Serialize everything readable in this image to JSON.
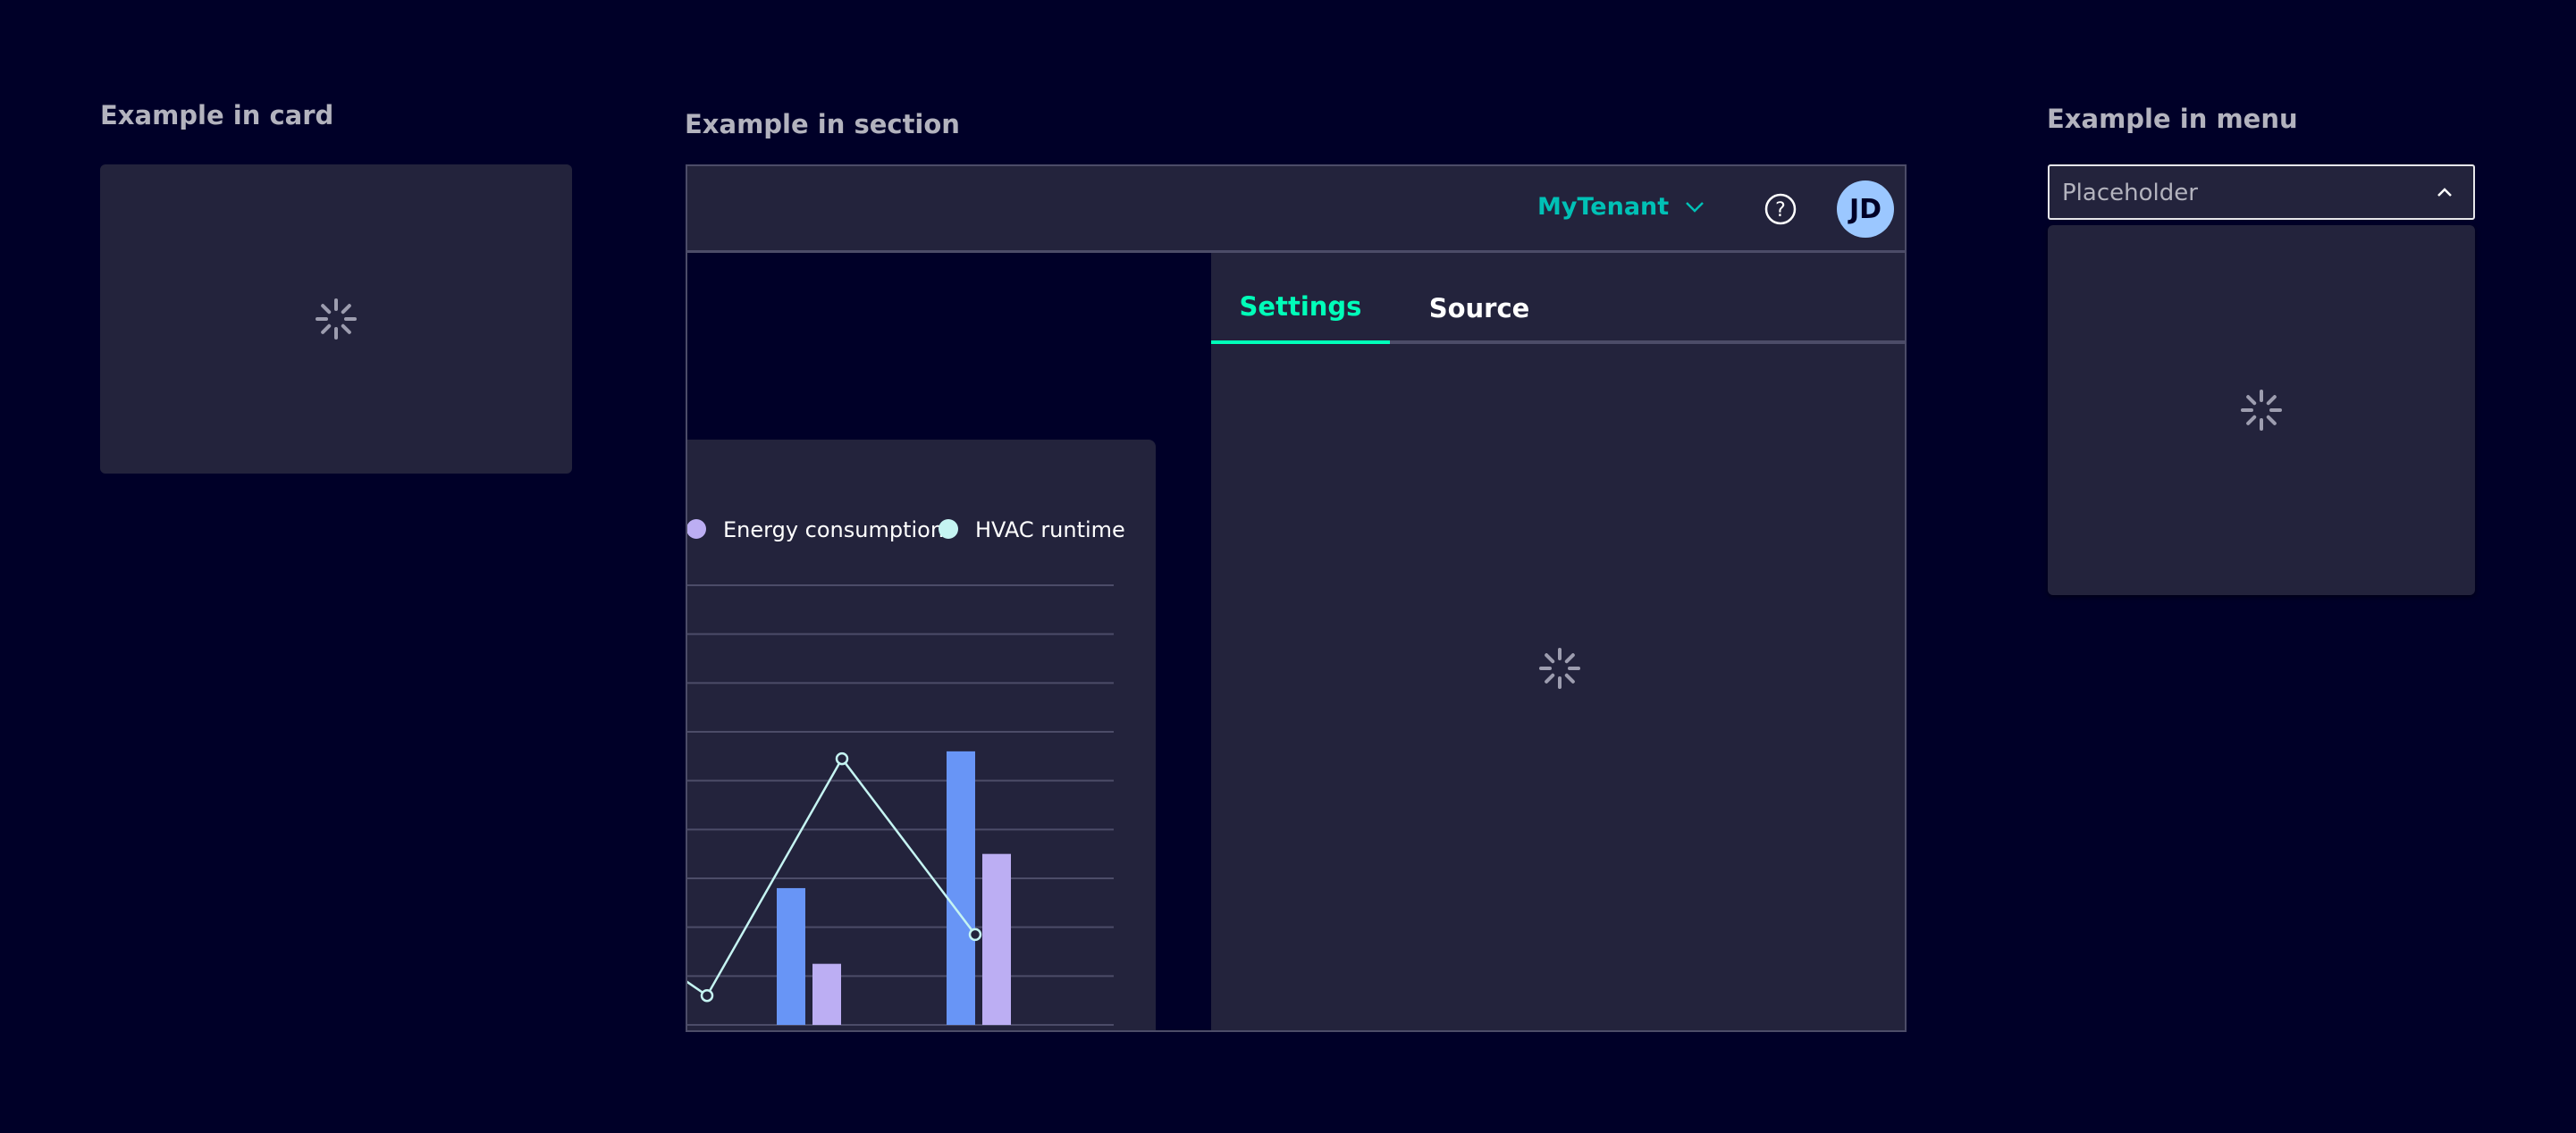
{
  "card_example": {
    "label": "Example in card"
  },
  "section_example": {
    "label": "Example in section",
    "header": {
      "tenant": "MyTenant",
      "avatar_initials": "JD"
    },
    "tabs": [
      {
        "label": "Settings",
        "active": true
      },
      {
        "label": "Source",
        "active": false
      }
    ],
    "chart_data": {
      "type": "bar",
      "legend": [
        "Energy consumption",
        "HVAC runtime"
      ],
      "legend_placement": "top",
      "grid": true,
      "ylim": [
        0,
        9
      ],
      "series": [
        {
          "values": [
            2.8,
            5.6
          ],
          "color": "#6895f6"
        },
        {
          "name": "Energy consumption",
          "values": [
            1.25,
            3.5
          ],
          "color": "#bcaef3"
        },
        {
          "name": "HVAC runtime",
          "type": "line",
          "values": [
            0.6,
            5.45,
            1.85
          ],
          "color": "#c5f4f2"
        }
      ]
    }
  },
  "menu_example": {
    "label": "Example in menu",
    "dropdown_placeholder": "Placeholder"
  },
  "colors": {
    "background": "#000028",
    "panel": "#23233c",
    "accent": "#00ffb9",
    "tenant": "#00c1b6",
    "avatar": "#9bc7ff"
  }
}
